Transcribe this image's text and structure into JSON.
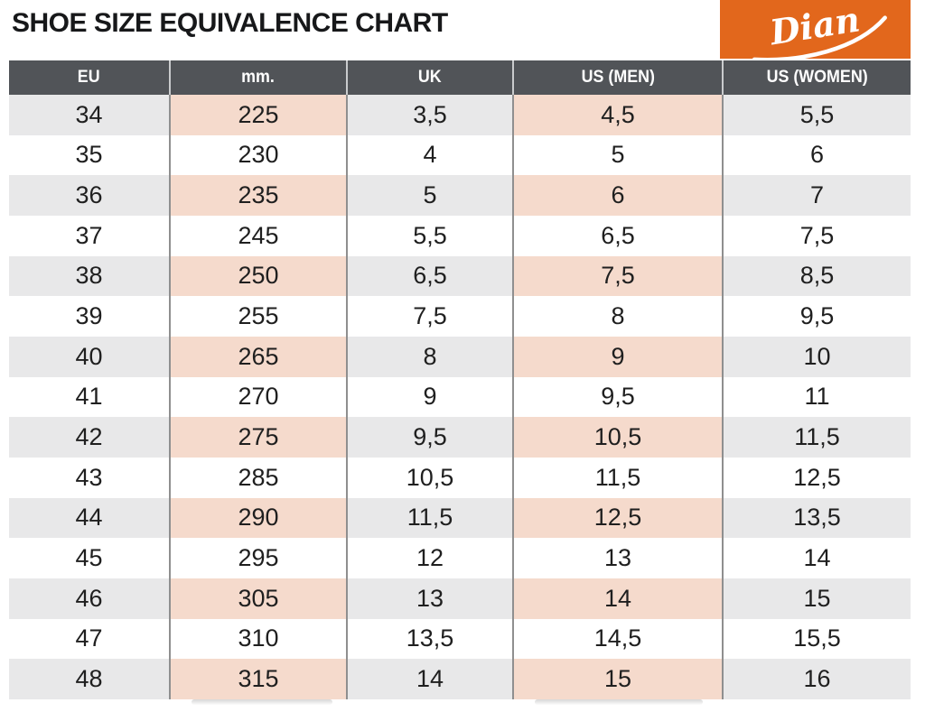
{
  "page": {
    "title": "SHOE SIZE EQUIVALENCE CHART"
  },
  "logo": {
    "brand": "Dian",
    "bg_color": "#E2671C",
    "text_color": "#FFFFFF"
  },
  "colors": {
    "header_bg": "#515458",
    "header_text": "#FFFFFF",
    "row_bg": "#FFFFFF",
    "row_alt_bg": "#E8E8E9",
    "row_accent_bg": "#F5DACC",
    "grid_line": "#8F8F8F",
    "text": "#1F1F1F",
    "logo_bg": "#E2671C"
  },
  "chart_data": {
    "type": "table",
    "title": "SHOE SIZE EQUIVALENCE CHART",
    "columns": [
      "EU",
      "mm.",
      "UK",
      "US (MEN)",
      "US (WOMEN)"
    ],
    "accent_columns": [
      1,
      3
    ],
    "rows": [
      [
        "34",
        "225",
        "3,5",
        "4,5",
        "5,5"
      ],
      [
        "35",
        "230",
        "4",
        "5",
        "6"
      ],
      [
        "36",
        "235",
        "5",
        "6",
        "7"
      ],
      [
        "37",
        "245",
        "5,5",
        "6,5",
        "7,5"
      ],
      [
        "38",
        "250",
        "6,5",
        "7,5",
        "8,5"
      ],
      [
        "39",
        "255",
        "7,5",
        "8",
        "9,5"
      ],
      [
        "40",
        "265",
        "8",
        "9",
        "10"
      ],
      [
        "41",
        "270",
        "9",
        "9,5",
        "11"
      ],
      [
        "42",
        "275",
        "9,5",
        "10,5",
        "11,5"
      ],
      [
        "43",
        "285",
        "10,5",
        "11,5",
        "12,5"
      ],
      [
        "44",
        "290",
        "11,5",
        "12,5",
        "13,5"
      ],
      [
        "45",
        "295",
        "12",
        "13",
        "14"
      ],
      [
        "46",
        "305",
        "13",
        "14",
        "15"
      ],
      [
        "47",
        "310",
        "13,5",
        "14,5",
        "15,5"
      ],
      [
        "48",
        "315",
        "14",
        "15",
        "16"
      ]
    ]
  }
}
